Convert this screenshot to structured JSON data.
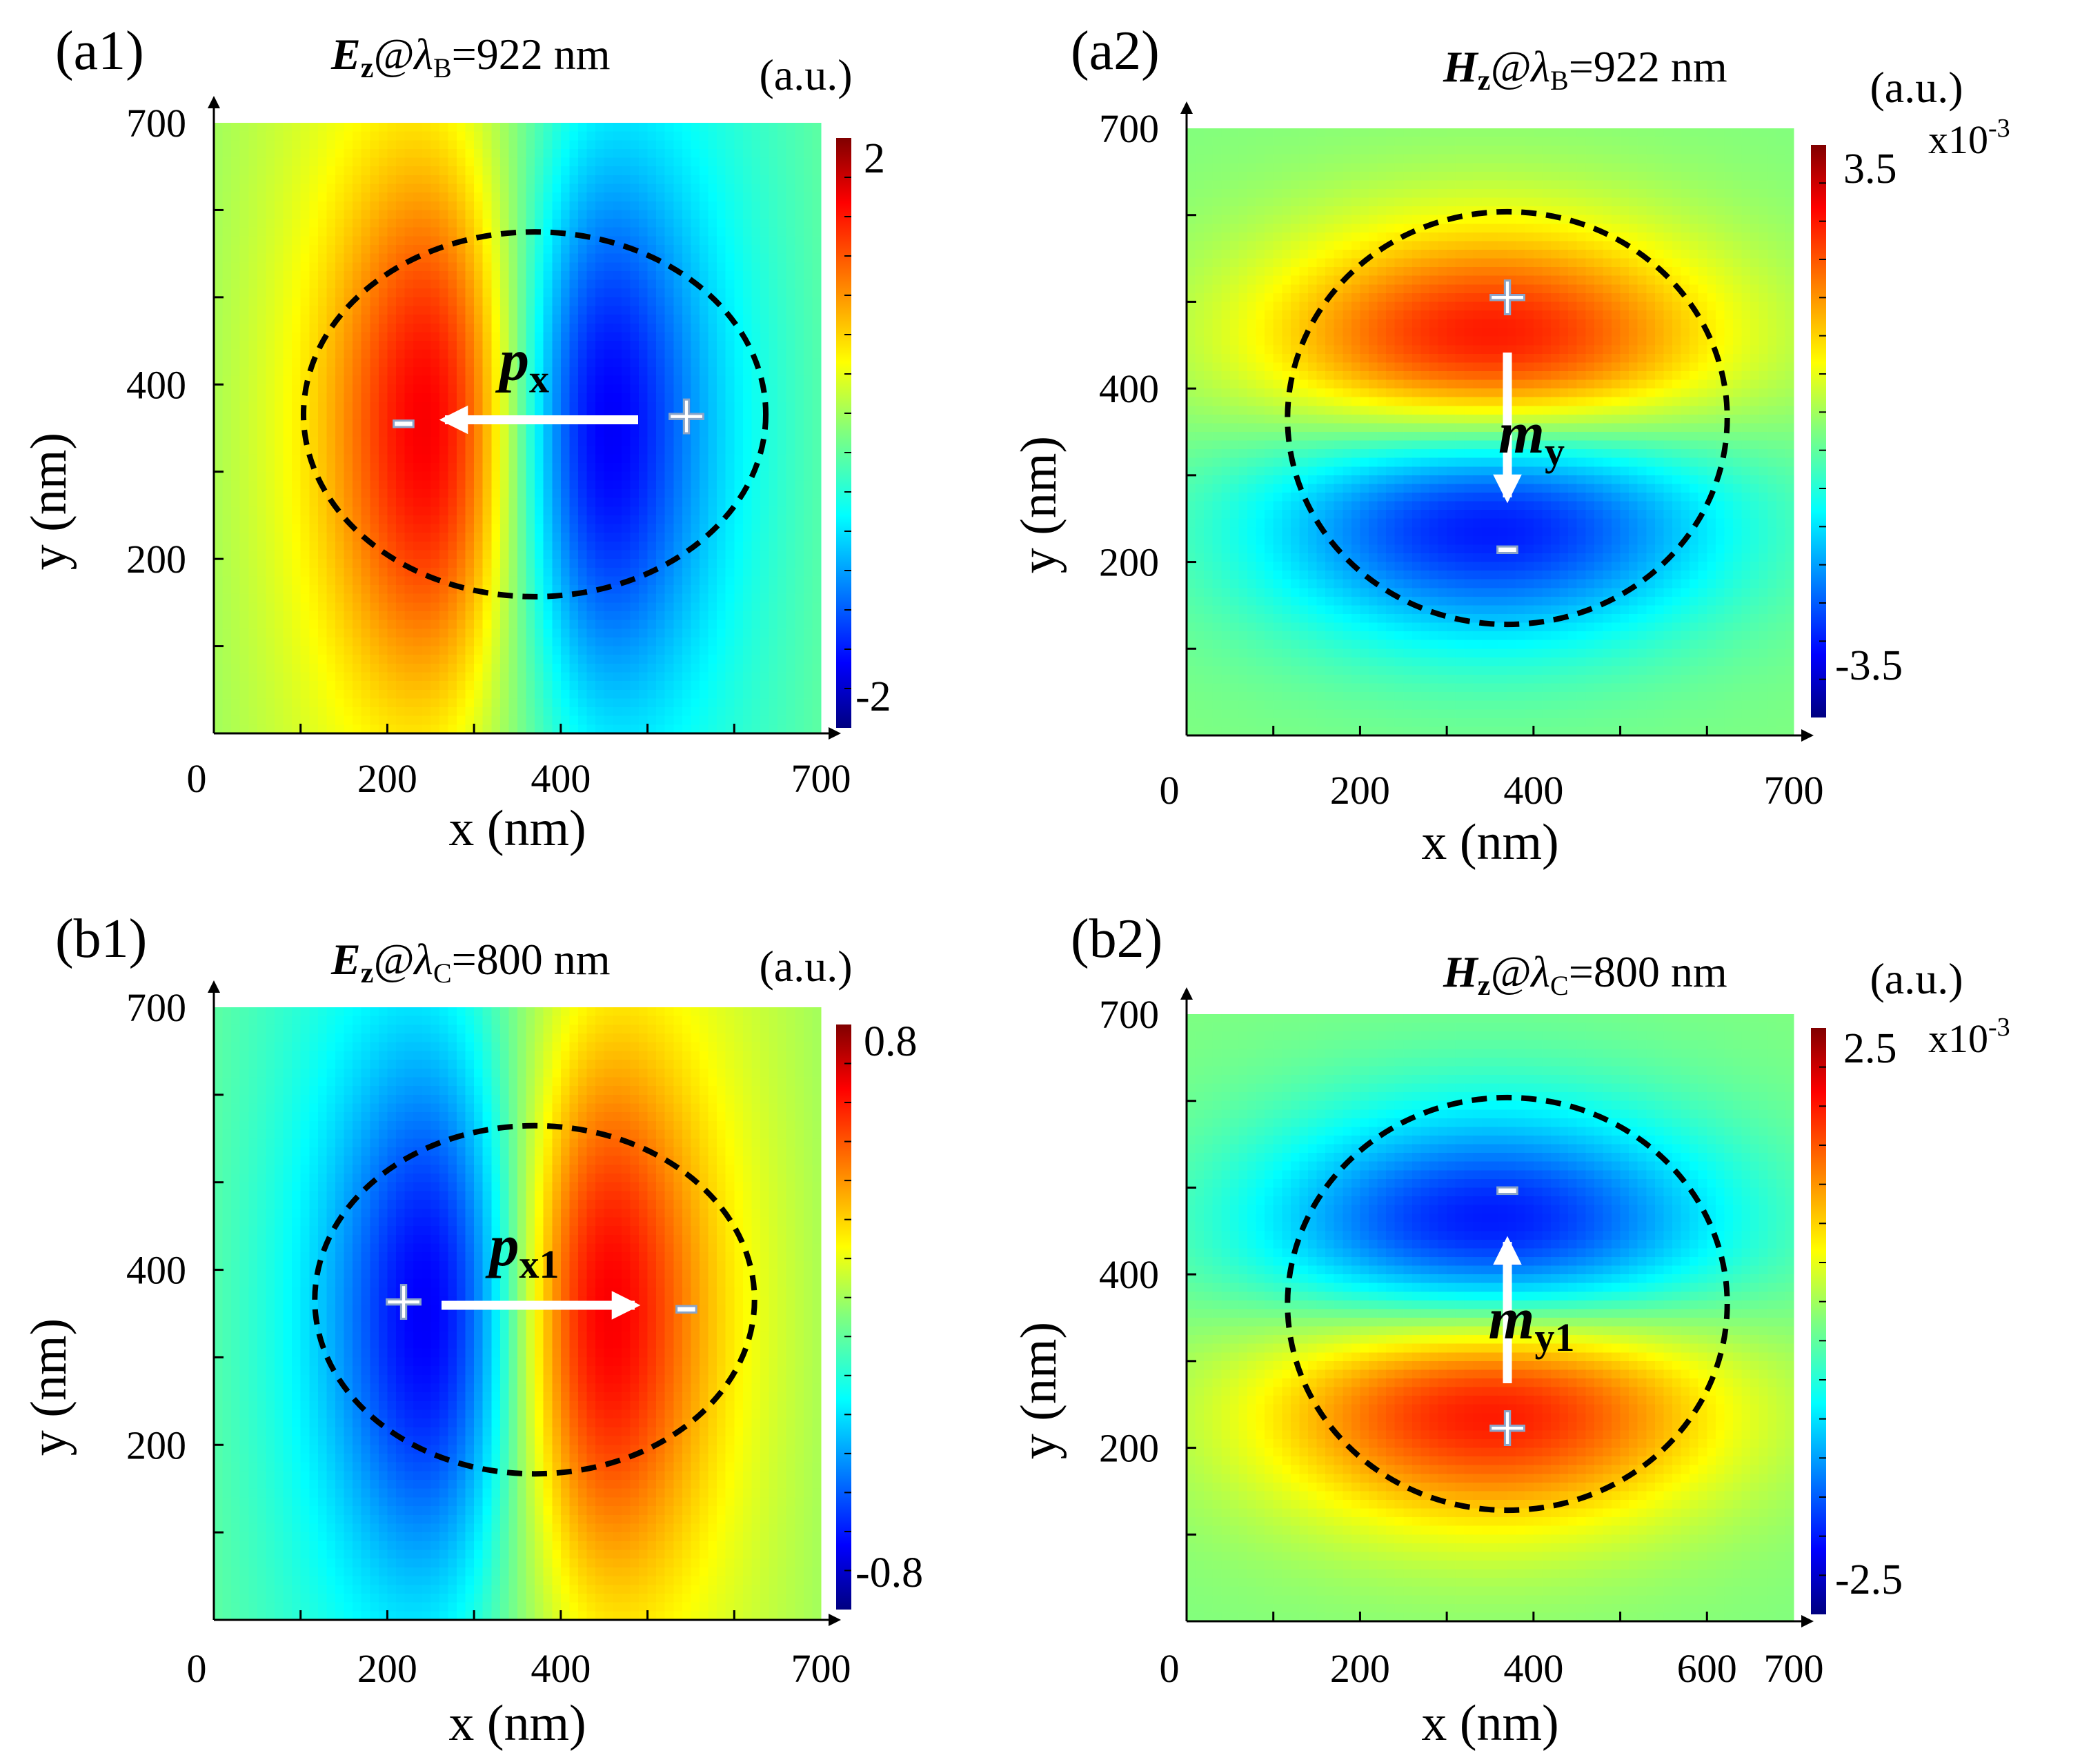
{
  "chart_data": [
    {
      "type": "heatmap",
      "panel_label": "(a1)",
      "title": {
        "field": "E",
        "sub": "z",
        "mid": "@λ",
        "lam_sub": "B",
        "rest": "=922 nm"
      },
      "xlabel": "x (nm)",
      "ylabel": "y (nm)",
      "xticks": [
        "0",
        "200",
        "400",
        "700"
      ],
      "yticks": [
        "700",
        "400",
        "200"
      ],
      "xlim": [
        0,
        700
      ],
      "ylim": [
        0,
        700
      ],
      "colorbar": {
        "unit": "(a.u.)",
        "max_label": "2",
        "min_label": "-2",
        "scale": "",
        "range": [
          -2,
          2
        ]
      },
      "field": {
        "kind": "electric_dipole",
        "orientation": "x",
        "sign": -1,
        "center": [
          350,
          350
        ],
        "radius": 205
      },
      "dipole": {
        "symbol": "p",
        "sub": "x",
        "plus": "+",
        "minus": "-",
        "direction": "-x"
      }
    },
    {
      "type": "heatmap",
      "panel_label": "(a2)",
      "title": {
        "field": "H",
        "sub": "z",
        "mid": "@λ",
        "lam_sub": "B",
        "rest": "=922 nm"
      },
      "xlabel": "x (nm)",
      "ylabel": "y (nm)",
      "xticks": [
        "0",
        "200",
        "400",
        "700"
      ],
      "yticks": [
        "700",
        "400",
        "200"
      ],
      "xlim": [
        0,
        700
      ],
      "ylim": [
        0,
        700
      ],
      "colorbar": {
        "unit": "(a.u.)",
        "max_label": "3.5",
        "min_label": "-3.5",
        "scale": "x10-3",
        "scale_base": "x10",
        "scale_exp": "-3",
        "range": [
          -3.5,
          3.5
        ]
      },
      "field": {
        "kind": "magnetic_dipole",
        "orientation": "y",
        "sign": 1,
        "center": [
          350,
          350
        ],
        "radius": 195
      },
      "dipole": {
        "symbol": "m",
        "sub": "y",
        "plus": "+",
        "minus": "-",
        "direction": "-y"
      }
    },
    {
      "type": "heatmap",
      "panel_label": "(b1)",
      "title": {
        "field": "E",
        "sub": "z",
        "mid": "@λ",
        "lam_sub": "C",
        "rest": "=800 nm"
      },
      "xlabel": "x (nm)",
      "ylabel": "y (nm)",
      "xticks": [
        "0",
        "200",
        "400",
        "700"
      ],
      "yticks": [
        "700",
        "400",
        "200"
      ],
      "xlim": [
        0,
        700
      ],
      "ylim": [
        0,
        700
      ],
      "colorbar": {
        "unit": "(a.u.)",
        "max_label": "0.8",
        "min_label": "-0.8",
        "scale": "",
        "range": [
          -0.8,
          0.8
        ]
      },
      "field": {
        "kind": "electric_dipole",
        "orientation": "x",
        "sign": 1,
        "center": [
          350,
          350
        ],
        "radius": 195
      },
      "dipole": {
        "symbol": "p",
        "sub": "x1",
        "plus": "+",
        "minus": "-",
        "direction": "+x"
      }
    },
    {
      "type": "heatmap",
      "panel_label": "(b2)",
      "title": {
        "field": "H",
        "sub": "z",
        "mid": "@λ",
        "lam_sub": "C",
        "rest": "=800 nm"
      },
      "xlabel": "x (nm)",
      "ylabel": "y (nm)",
      "xticks": [
        "0",
        "200",
        "400",
        "600",
        "700"
      ],
      "yticks": [
        "700",
        "400",
        "200"
      ],
      "xlim": [
        0,
        700
      ],
      "ylim": [
        0,
        700
      ],
      "colorbar": {
        "unit": "(a.u.)",
        "max_label": "2.5",
        "min_label": "-2.5",
        "scale": "x10-3",
        "scale_base": "x10",
        "scale_exp": "-3",
        "range": [
          -2.5,
          2.5
        ]
      },
      "field": {
        "kind": "magnetic_dipole",
        "orientation": "y",
        "sign": -1,
        "center": [
          350,
          350
        ],
        "radius": 195
      },
      "dipole": {
        "symbol": "m",
        "sub": "y1",
        "plus": "+",
        "minus": "-",
        "direction": "+y"
      }
    }
  ]
}
